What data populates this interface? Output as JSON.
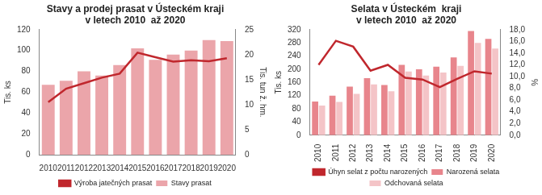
{
  "chart_data": [
    {
      "type": "bar",
      "title": "Stavy a prodej prasat v Ústeckém kraji\nv letech 2010  až 2020",
      "categories": [
        "2010",
        "2011",
        "2012",
        "2013",
        "2014",
        "2015",
        "2016",
        "2017",
        "2018",
        "2019",
        "2020"
      ],
      "ylabel": "Tis. ks",
      "y2label": "Tis. tun ž. hm.",
      "ylim": [
        0,
        120
      ],
      "yticks": [
        0,
        20,
        40,
        60,
        80,
        100,
        120
      ],
      "y2lim": [
        0,
        25
      ],
      "y2ticks": [
        0,
        5,
        10,
        15,
        20,
        25
      ],
      "grid": false,
      "legend": "bottom",
      "series": [
        {
          "name": "Stavy prasat",
          "type": "bar",
          "color": "#eba5aa",
          "values": [
            67,
            71,
            80,
            76,
            86,
            102,
            91,
            96,
            100,
            110,
            109
          ]
        },
        {
          "name": "Výroba jatečných prasat",
          "type": "line",
          "axis": "y2",
          "color": "#c0272d",
          "marker": "none",
          "values": [
            10.5,
            13.2,
            14.3,
            15.4,
            16.2,
            20.4,
            19.5,
            18.6,
            18.9,
            18.7,
            19.3
          ]
        }
      ]
    },
    {
      "type": "bar",
      "title": "Selata v Ústeckém  kraji\nv letech 2010  až 2020",
      "categories": [
        "2010",
        "2011",
        "2012",
        "2013",
        "2014",
        "2015",
        "2016",
        "2017",
        "2018",
        "2019",
        "2020"
      ],
      "ylabel": "Tis. ks",
      "y2label": "%",
      "ylim": [
        0,
        320
      ],
      "yticks": [
        0,
        40,
        80,
        120,
        160,
        200,
        240,
        280,
        320
      ],
      "y2lim": [
        0,
        18
      ],
      "y2ticks": [
        {
          "value": 0,
          "label": "0,0"
        },
        {
          "value": 2,
          "label": "2,0"
        },
        {
          "value": 4,
          "label": "4,0"
        },
        {
          "value": 6,
          "label": "6,0"
        },
        {
          "value": 8,
          "label": "8,0"
        },
        {
          "value": 10,
          "label": "10,0"
        },
        {
          "value": 12,
          "label": "12,0"
        },
        {
          "value": 14,
          "label": "14,0"
        },
        {
          "value": 16,
          "label": "16,0"
        },
        {
          "value": 18,
          "label": "18,0"
        }
      ],
      "grid": false,
      "legend": "bottom",
      "series": [
        {
          "name": "Narozená selata",
          "type": "bar",
          "color": "#e8858c",
          "values": [
            102,
            120,
            147,
            173,
            152,
            213,
            200,
            208,
            236,
            316,
            292
          ]
        },
        {
          "name": "Odchovaná selata",
          "type": "bar",
          "color": "#f4c4c7",
          "values": [
            90,
            101,
            125,
            154,
            133,
            193,
            181,
            190,
            210,
            280,
            263
          ]
        },
        {
          "name": "Úhyn selat z počtu narozených",
          "type": "line",
          "axis": "y2",
          "color": "#c0272d",
          "marker": "none",
          "values": [
            12.0,
            16.1,
            15.1,
            11.0,
            12.0,
            9.8,
            9.5,
            8.2,
            9.6,
            10.9,
            10.5
          ]
        }
      ]
    }
  ]
}
